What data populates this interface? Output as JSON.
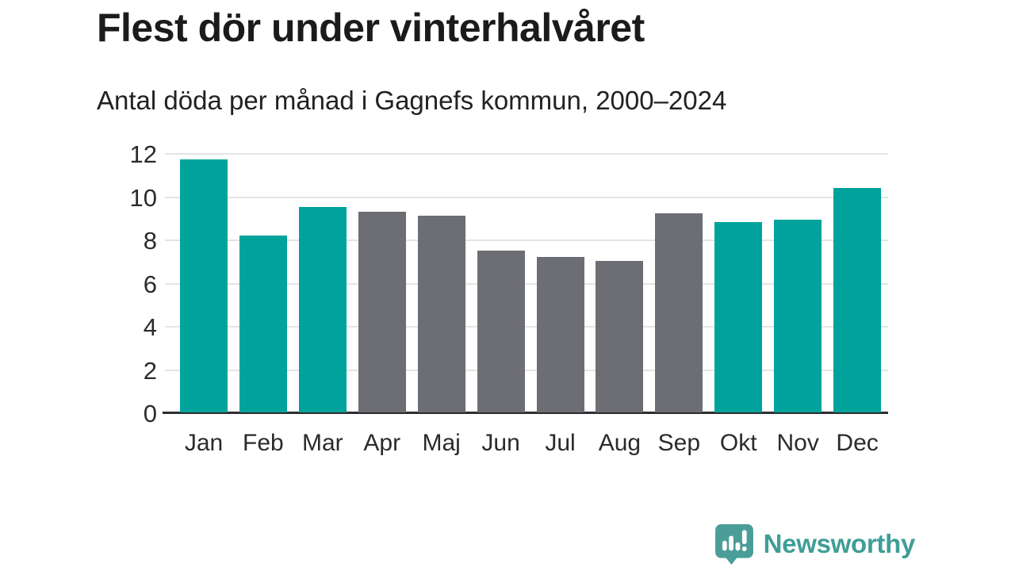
{
  "header": {
    "title": "Flest dör under vinterhalvåret",
    "subtitle": "Antal döda per månad i Gagnefs kommun, 2000–2024"
  },
  "chart_data": {
    "type": "bar",
    "title": "Flest dör under vinterhalvåret",
    "subtitle": "Antal döda per månad i Gagnefs kommun, 2000–2024",
    "categories": [
      "Jan",
      "Feb",
      "Mar",
      "Apr",
      "Maj",
      "Jun",
      "Jul",
      "Aug",
      "Sep",
      "Okt",
      "Nov",
      "Dec"
    ],
    "values": [
      11.7,
      8.2,
      9.5,
      9.3,
      9.1,
      7.5,
      7.2,
      7.0,
      9.2,
      8.8,
      8.9,
      10.4
    ],
    "bar_color_keys": [
      "winter",
      "winter",
      "winter",
      "summer",
      "summer",
      "summer",
      "summer",
      "summer",
      "summer",
      "winter",
      "winter",
      "winter"
    ],
    "colors": {
      "winter": "#00a39b",
      "summer": "#6d6d74",
      "gridline": "#e4e4e4",
      "axis": "#2d2d2d"
    },
    "xlabel": "",
    "ylabel": "",
    "ylim": [
      0,
      12
    ],
    "yticks": [
      0,
      2,
      4,
      6,
      8,
      10,
      12
    ],
    "grid": true,
    "legend_position": "none"
  },
  "footer": {
    "brand": "Newsworthy",
    "brand_color": "#3f9e97",
    "logo_bubble_color": "#4a9d98"
  }
}
